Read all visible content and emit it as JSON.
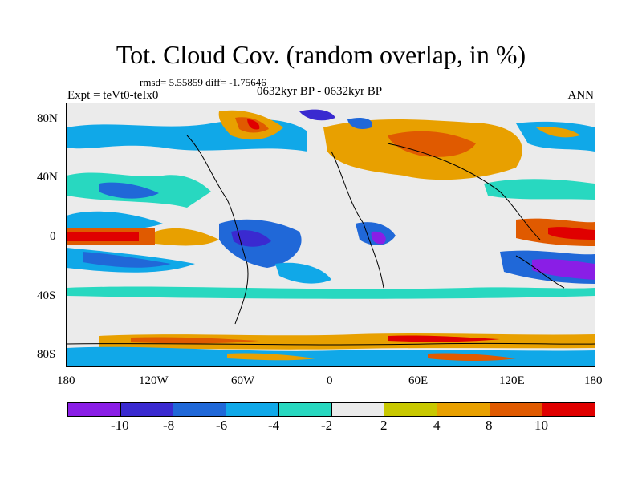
{
  "title": "Tot. Cloud Cov. (random overlap, in %)",
  "stats": "rmsd= 5.55859  diff= -1.75646",
  "expt": "Expt = teVt0-teIx0",
  "period": "0632kyr BP - 0632kyr BP",
  "season": "ANN",
  "map": {
    "projection": "cylindrical equidistant",
    "y_ticks": [
      "80N",
      "40N",
      "0",
      "40S",
      "80S"
    ],
    "x_ticks": [
      "180",
      "120W",
      "60W",
      "0",
      "60E",
      "120E",
      "180"
    ]
  },
  "colorbar": {
    "labels": [
      "-10",
      "-8",
      "-6",
      "-4",
      "-2",
      "2",
      "4",
      "8",
      "10"
    ],
    "colors": [
      "#8a1ee6",
      "#3a2ad0",
      "#2068d8",
      "#10a8e8",
      "#28d8c0",
      "#ebebeb",
      "#c8c800",
      "#e8a000",
      "#e05a00",
      "#e00000"
    ]
  }
}
